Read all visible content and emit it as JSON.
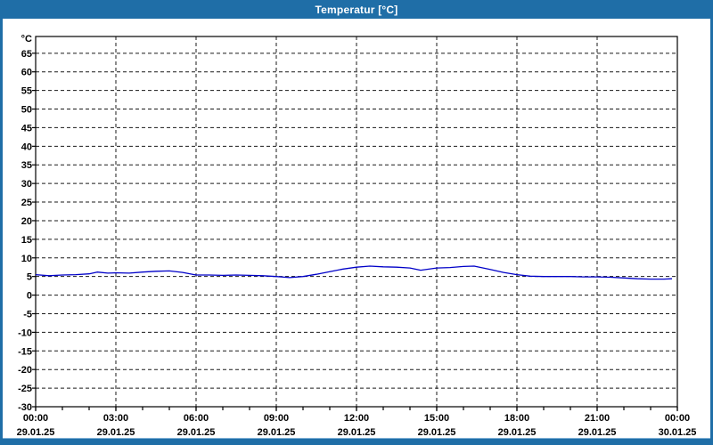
{
  "window": {
    "title": "Temperatur [°C]",
    "titlebar_color": "#1f6ea7",
    "frame_color": "#1f6ea7",
    "frame_highlight_color": "#7fb0d6"
  },
  "chart_data": {
    "type": "line",
    "title": "Temperatur [°C]",
    "y_unit_label": "°C",
    "ylim": [
      -30,
      69.5
    ],
    "y_ticks": [
      65,
      60,
      55,
      50,
      45,
      40,
      35,
      30,
      25,
      20,
      15,
      10,
      5,
      0,
      -5,
      -10,
      -15,
      -20,
      -25,
      -30
    ],
    "xlim_hours": [
      0,
      24
    ],
    "x_minor_tick_hours": 1,
    "x_ticks": [
      {
        "hour": 0,
        "time": "00:00",
        "date": "29.01.25"
      },
      {
        "hour": 3,
        "time": "03:00",
        "date": "29.01.25"
      },
      {
        "hour": 6,
        "time": "06:00",
        "date": "29.01.25"
      },
      {
        "hour": 9,
        "time": "09:00",
        "date": "29.01.25"
      },
      {
        "hour": 12,
        "time": "12:00",
        "date": "29.01.25"
      },
      {
        "hour": 15,
        "time": "15:00",
        "date": "29.01.25"
      },
      {
        "hour": 18,
        "time": "18:00",
        "date": "29.01.25"
      },
      {
        "hour": 21,
        "time": "21:00",
        "date": "29.01.25"
      },
      {
        "hour": 24,
        "time": "00:00",
        "date": "30.01.25"
      }
    ],
    "grid": "dashed",
    "grid_color": "#1a1a1a",
    "axis_color": "#000000",
    "label_color": "#000000",
    "line_color": "#0000c8",
    "series": [
      {
        "name": "Temperatur",
        "points": [
          [
            0,
            5.5
          ],
          [
            0.5,
            5.2
          ],
          [
            1,
            5.4
          ],
          [
            1.5,
            5.5
          ],
          [
            2,
            5.7
          ],
          [
            2.3,
            6.2
          ],
          [
            2.7,
            5.9
          ],
          [
            3,
            6.0
          ],
          [
            3.5,
            5.9
          ],
          [
            4,
            6.2
          ],
          [
            4.5,
            6.4
          ],
          [
            5,
            6.5
          ],
          [
            5.5,
            6.1
          ],
          [
            6,
            5.4
          ],
          [
            6.5,
            5.4
          ],
          [
            7,
            5.3
          ],
          [
            7.5,
            5.4
          ],
          [
            8,
            5.3
          ],
          [
            8.5,
            5.2
          ],
          [
            9,
            5.0
          ],
          [
            9.5,
            4.7
          ],
          [
            10,
            5.0
          ],
          [
            10.5,
            5.6
          ],
          [
            11,
            6.3
          ],
          [
            11.5,
            7.0
          ],
          [
            12,
            7.5
          ],
          [
            12.5,
            7.8
          ],
          [
            13,
            7.6
          ],
          [
            13.5,
            7.5
          ],
          [
            14,
            7.3
          ],
          [
            14.4,
            6.7
          ],
          [
            15,
            7.3
          ],
          [
            15.5,
            7.4
          ],
          [
            16,
            7.7
          ],
          [
            16.4,
            7.8
          ],
          [
            17,
            6.9
          ],
          [
            17.5,
            6.1
          ],
          [
            18,
            5.5
          ],
          [
            18.5,
            5.1
          ],
          [
            19,
            5.0
          ],
          [
            19.5,
            5.0
          ],
          [
            20,
            5.0
          ],
          [
            20.5,
            4.9
          ],
          [
            21,
            4.9
          ],
          [
            21.5,
            4.8
          ],
          [
            22,
            4.6
          ],
          [
            22.5,
            4.4
          ],
          [
            23,
            4.3
          ],
          [
            23.5,
            4.3
          ],
          [
            23.8,
            4.4
          ]
        ]
      }
    ]
  }
}
